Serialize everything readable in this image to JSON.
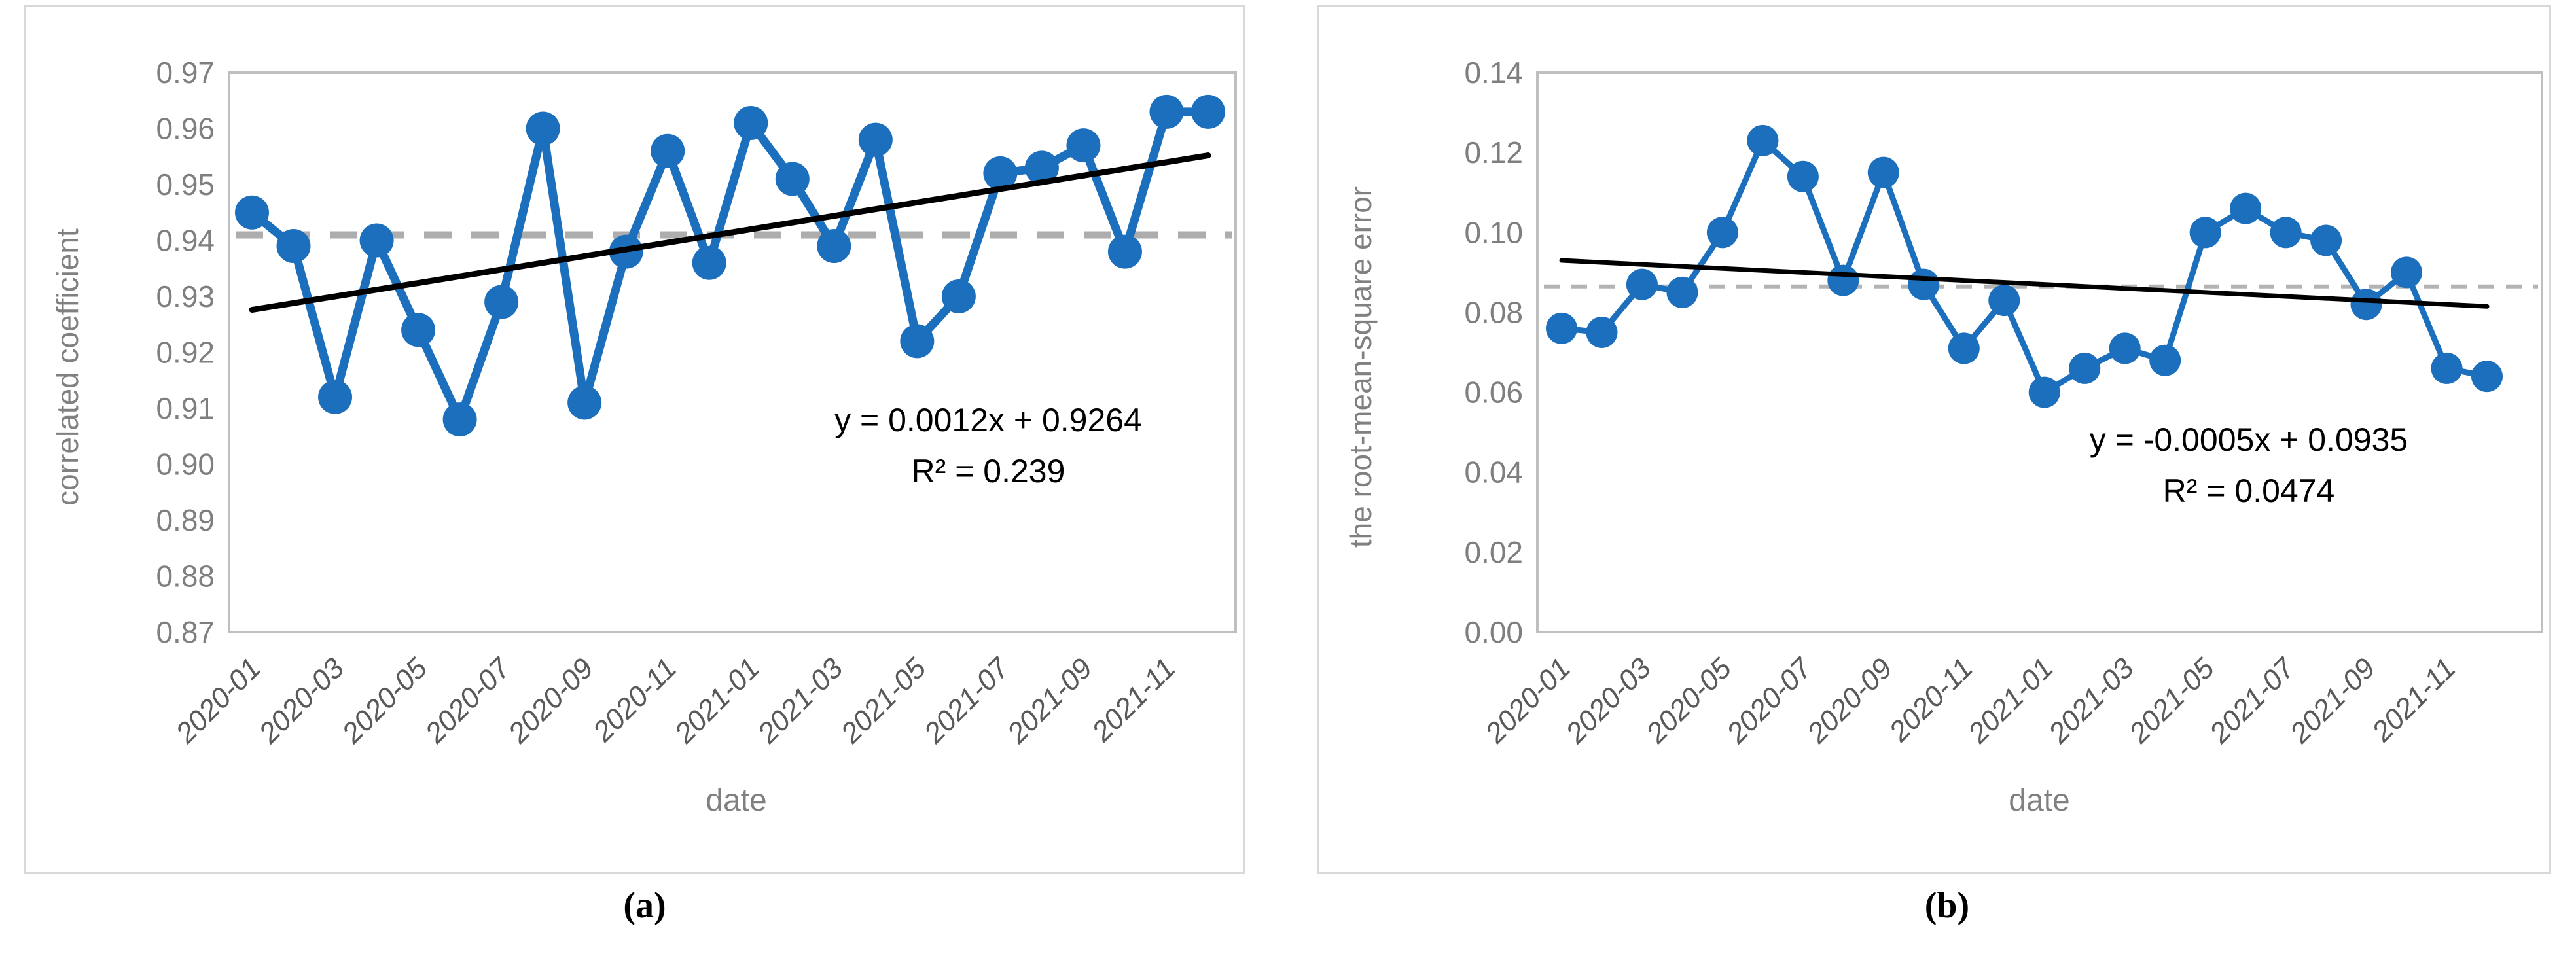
{
  "figure": {
    "captions": {
      "a": "(a)",
      "b": "(b)"
    }
  },
  "colors": {
    "series_blue": "#1c6fbc",
    "trend_black": "#000000",
    "mean_dash_gray_a": "#adadad",
    "mean_dash_gray_b": "#b3b3b3",
    "plot_frame_gray": "#bfbfbf",
    "panel_border_gray": "#d9d9d9",
    "y_tick_label_gray": "#7f7f7f",
    "x_tick_label_gray": "#595959",
    "axis_title_gray": "#808080"
  },
  "chart_data": [
    {
      "id": "a",
      "type": "line",
      "title": "",
      "xlabel": "date",
      "ylabel": "correlated coefficient",
      "x": [
        "2020-01",
        "2020-02",
        "2020-03",
        "2020-04",
        "2020-05",
        "2020-06",
        "2020-07",
        "2020-08",
        "2020-09",
        "2020-10",
        "2020-11",
        "2020-12",
        "2021-01",
        "2021-02",
        "2021-03",
        "2021-04",
        "2021-05",
        "2021-06",
        "2021-07",
        "2021-08",
        "2021-09",
        "2021-10",
        "2021-11",
        "2021-12"
      ],
      "values": [
        0.945,
        0.939,
        0.912,
        0.94,
        0.924,
        0.908,
        0.929,
        0.96,
        0.911,
        0.938,
        0.956,
        0.936,
        0.961,
        0.951,
        0.939,
        0.958,
        0.922,
        0.93,
        0.952,
        0.953,
        0.957,
        0.938,
        0.963,
        0.963
      ],
      "ylim": [
        0.87,
        0.97
      ],
      "y_tick_labels": [
        "0.97",
        "0.96",
        "0.95",
        "0.94",
        "0.93",
        "0.92",
        "0.91",
        "0.90",
        "0.89",
        "0.88",
        "0.87"
      ],
      "x_tick_labels": [
        "2020-01",
        "2020-03",
        "2020-05",
        "2020-07",
        "2020-09",
        "2020-11",
        "2021-01",
        "2021-03",
        "2021-05",
        "2021-07",
        "2021-09",
        "2021-11"
      ],
      "x_tick_every": 2,
      "grid": false,
      "legend": "none",
      "mean_line": 0.941,
      "trendline": {
        "slope": 0.0012,
        "intercept": 0.9264,
        "equation": "y = 0.0012x + 0.9264",
        "r_squared_label": "R² = 0.239"
      }
    },
    {
      "id": "b",
      "type": "line",
      "title": "",
      "xlabel": "date",
      "ylabel": "the root-mean-square error",
      "x": [
        "2020-01",
        "2020-02",
        "2020-03",
        "2020-04",
        "2020-05",
        "2020-06",
        "2020-07",
        "2020-08",
        "2020-09",
        "2020-10",
        "2020-11",
        "2020-12",
        "2021-01",
        "2021-02",
        "2021-03",
        "2021-04",
        "2021-05",
        "2021-06",
        "2021-07",
        "2021-08",
        "2021-09",
        "2021-10",
        "2021-11",
        "2021-12"
      ],
      "values": [
        0.076,
        0.075,
        0.087,
        0.085,
        0.1,
        0.123,
        0.114,
        0.088,
        0.115,
        0.087,
        0.071,
        0.083,
        0.06,
        0.066,
        0.071,
        0.068,
        0.1,
        0.106,
        0.1,
        0.098,
        0.082,
        0.09,
        0.066,
        0.064
      ],
      "ylim": [
        0.0,
        0.14
      ],
      "y_tick_labels": [
        "0.14",
        "0.12",
        "0.10",
        "0.08",
        "0.06",
        "0.04",
        "0.02",
        "0.00"
      ],
      "x_tick_labels": [
        "2020-01",
        "2020-03",
        "2020-05",
        "2020-07",
        "2020-09",
        "2020-11",
        "2021-01",
        "2021-03",
        "2021-05",
        "2021-07",
        "2021-09",
        "2021-11"
      ],
      "x_tick_every": 2,
      "grid": false,
      "legend": "none",
      "mean_line": 0.0865,
      "trendline": {
        "slope": -0.0005,
        "intercept": 0.0935,
        "equation": "y = -0.0005x + 0.0935",
        "r_squared_label": "R² = 0.0474"
      }
    }
  ]
}
